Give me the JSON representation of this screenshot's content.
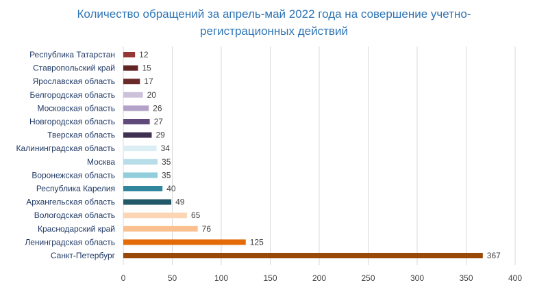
{
  "chart_data": {
    "type": "bar",
    "orientation": "horizontal",
    "title_lines": [
      "Количество обращений за апрель-май 2022 года на совершение учетно-",
      "регистрационных действий"
    ],
    "categories": [
      "Республика Татарстан",
      "Ставропольский край",
      "Ярославская область",
      "Белгородская область",
      "Московская область",
      "Новгородская область",
      "Тверская область",
      "Калининградская область",
      "Москва",
      "Воронежская область",
      "Республика Карелия",
      "Архангельская область",
      "Вологодская область",
      "Краснодарский край",
      "Ленинградская область",
      "Санкт-Петербург"
    ],
    "values": [
      12,
      15,
      17,
      20,
      26,
      27,
      29,
      34,
      35,
      35,
      40,
      49,
      65,
      76,
      125,
      367
    ],
    "colors": [
      "#953735",
      "#632523",
      "#6b2a2a",
      "#ccc1da",
      "#b3a2c7",
      "#5f4a7b",
      "#403152",
      "#daeef3",
      "#b7dee8",
      "#92cddc",
      "#31859c",
      "#215968",
      "#fcd5b5",
      "#fac090",
      "#e36c09",
      "#984807"
    ],
    "xlim": [
      0,
      400
    ],
    "xticks": [
      0,
      50,
      100,
      150,
      200,
      250,
      300,
      350,
      400
    ],
    "grid": true,
    "gridline_color": "#d9d9d9",
    "legend": "none"
  }
}
